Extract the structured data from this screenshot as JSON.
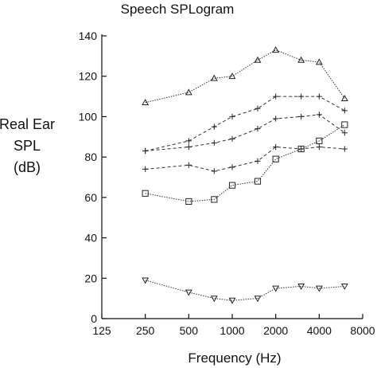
{
  "chart_data": {
    "type": "line",
    "title": "Speech SPLogram",
    "xlabel": "Frequency (Hz)",
    "ylabel_lines": [
      "Real Ear",
      "SPL",
      "(dB)"
    ],
    "x_scale": "log2",
    "xlim": [
      125,
      8000
    ],
    "ylim": [
      0,
      140
    ],
    "x_ticks": [
      125,
      250,
      500,
      1000,
      2000,
      4000,
      8000
    ],
    "y_ticks": [
      0,
      20,
      40,
      60,
      80,
      100,
      120,
      140
    ],
    "grid": false,
    "legend": "none",
    "series": [
      {
        "marker": "triangle-up",
        "line_style": "dotted",
        "x": [
          250,
          500,
          750,
          1000,
          1500,
          2000,
          3000,
          4000,
          6000
        ],
        "values": [
          107,
          112,
          119,
          120,
          128,
          133,
          128,
          127,
          109
        ]
      },
      {
        "marker": "plus",
        "line_style": "dashed",
        "x": [
          250,
          500,
          750,
          1000,
          1500,
          2000,
          3000,
          4000,
          6000
        ],
        "values": [
          83,
          88,
          95,
          100,
          104,
          110,
          110,
          110,
          103
        ]
      },
      {
        "marker": "plus",
        "line_style": "dashed",
        "x": [
          250,
          500,
          750,
          1000,
          1500,
          2000,
          3000,
          4000,
          6000
        ],
        "values": [
          83,
          85,
          87,
          89,
          94,
          99,
          100,
          101,
          92
        ]
      },
      {
        "marker": "plus",
        "line_style": "dashed",
        "x": [
          250,
          500,
          750,
          1000,
          1500,
          2000,
          3000,
          4000,
          6000
        ],
        "values": [
          74,
          76,
          73,
          75,
          78,
          85,
          84,
          85,
          84
        ]
      },
      {
        "marker": "square",
        "line_style": "dotted",
        "x": [
          250,
          500,
          750,
          1000,
          1500,
          2000,
          3000,
          4000,
          6000
        ],
        "values": [
          62,
          58,
          59,
          66,
          68,
          79,
          84,
          88,
          96
        ]
      },
      {
        "marker": "triangle-down",
        "line_style": "dotted",
        "x": [
          250,
          500,
          750,
          1000,
          1500,
          2000,
          3000,
          4000,
          6000
        ],
        "values": [
          19,
          13,
          10,
          9,
          10,
          15,
          16,
          15,
          16
        ]
      }
    ]
  }
}
